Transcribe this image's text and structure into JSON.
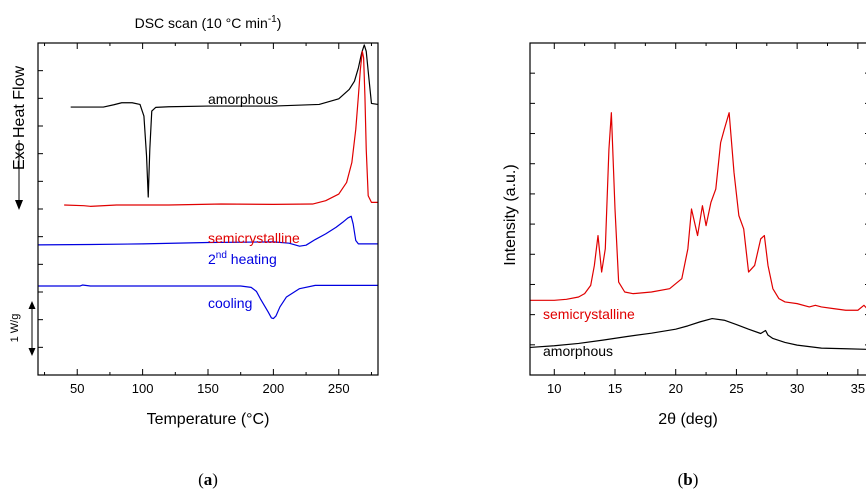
{
  "chart_data": [
    {
      "type": "line",
      "title": "DSC scan (10 °C min",
      "title_superscript": "-1",
      "title_suffix": ")",
      "xlabel": "Temperature (°C)",
      "ylabel": "Exo Heat Flow",
      "ylabel_arrow": "down",
      "scale_bar_label": "1 W/g",
      "xlim": [
        20,
        280
      ],
      "ylim": [
        0,
        10
      ],
      "xticks": [
        50,
        100,
        150,
        200,
        250
      ],
      "y_ticklabels_shown": false,
      "panel_label_bold": "a",
      "panel_label_open": "(",
      "panel_label_close": ")",
      "series": [
        {
          "name": "amorphous",
          "color": "#000000",
          "x": [
            45,
            70,
            78,
            84,
            92,
            98,
            101,
            103,
            104.3,
            105.5,
            107,
            110,
            120,
            150,
            200,
            235,
            250,
            258,
            262,
            265,
            267.5,
            269.5,
            271,
            273,
            275,
            280
          ],
          "y": [
            8.07,
            8.07,
            8.14,
            8.2,
            8.2,
            8.15,
            7.8,
            6.6,
            5.36,
            6.8,
            7.95,
            8.06,
            8.08,
            8.1,
            8.1,
            8.15,
            8.32,
            8.6,
            8.85,
            9.25,
            9.7,
            9.94,
            9.75,
            8.95,
            8.18,
            8.15
          ]
        },
        {
          "name": "semicrystalline",
          "color": "#e00000",
          "x": [
            40,
            55,
            60,
            80,
            120,
            160,
            200,
            230,
            240,
            250,
            256,
            260,
            263,
            265,
            266.5,
            268,
            269,
            270,
            271,
            272.5,
            275,
            280
          ],
          "y": [
            5.12,
            5.1,
            5.08,
            5.12,
            5.12,
            5.15,
            5.14,
            5.15,
            5.25,
            5.45,
            5.8,
            6.4,
            7.4,
            8.4,
            9.2,
            9.75,
            9.55,
            8.4,
            6.8,
            5.4,
            5.2,
            5.2
          ]
        },
        {
          "name": "2nd heating",
          "name_main": "2",
          "name_sup": "nd",
          "name_rest": " heating",
          "color": "#0000e0",
          "x": [
            20,
            60,
            100,
            150,
            200,
            212,
            220,
            225,
            232,
            240,
            248,
            253,
            257,
            259.5,
            261,
            263,
            265,
            270,
            280
          ],
          "y": [
            3.92,
            3.93,
            3.95,
            3.99,
            4.01,
            3.97,
            3.88,
            3.91,
            4.08,
            4.25,
            4.45,
            4.6,
            4.73,
            4.78,
            4.55,
            4.05,
            3.95,
            3.95,
            3.95
          ]
        },
        {
          "name": "cooling",
          "color": "#0000e0",
          "x": [
            20,
            52,
            54,
            60,
            100,
            150,
            175,
            183,
            187,
            190,
            193,
            196,
            198.5,
            200,
            202,
            205,
            210,
            220,
            232,
            245,
            260,
            280
          ],
          "y": [
            2.68,
            2.68,
            2.71,
            2.68,
            2.68,
            2.68,
            2.68,
            2.64,
            2.52,
            2.3,
            2.1,
            1.9,
            1.72,
            1.7,
            1.78,
            2.05,
            2.35,
            2.6,
            2.7,
            2.7,
            2.7,
            2.7
          ]
        }
      ]
    },
    {
      "type": "line",
      "title": "",
      "xlabel": "2θ (deg)",
      "ylabel": "Intensity (a.u.)",
      "xlim": [
        8,
        36
      ],
      "ylim": [
        0,
        100
      ],
      "xticks": [
        10,
        15,
        20,
        25,
        30,
        35
      ],
      "y_ticklabels_shown": false,
      "panel_label_bold": "b",
      "panel_label_open": "(",
      "panel_label_close": ")",
      "series": [
        {
          "name": "semicrystalline",
          "color": "#e00000",
          "x": [
            8,
            10,
            11,
            12,
            12.5,
            13,
            13.3,
            13.6,
            13.9,
            14.2,
            14.5,
            14.7,
            15,
            15.3,
            15.8,
            16.5,
            18,
            19.5,
            20.5,
            21,
            21.3,
            21.8,
            22.2,
            22.5,
            22.9,
            23.3,
            23.7,
            24,
            24.4,
            24.8,
            25.2,
            25.6,
            26,
            26.5,
            27,
            27.3,
            27.6,
            28,
            28.5,
            29,
            30,
            31,
            31.5,
            32,
            33,
            34,
            35,
            35.5,
            36
          ],
          "y": [
            22.5,
            22.5,
            22.8,
            23.5,
            24.5,
            27,
            33,
            42,
            31,
            38,
            68,
            79,
            50,
            28,
            25,
            24.5,
            25,
            26,
            29,
            38,
            50,
            42,
            51,
            45,
            52,
            56,
            70,
            74,
            79,
            61,
            48,
            44,
            31,
            33,
            41,
            42,
            33,
            26,
            23,
            22,
            21.5,
            20.5,
            21,
            20.5,
            20,
            19.5,
            19.5,
            21,
            19
          ]
        },
        {
          "name": "amorphous",
          "color": "#000000",
          "x": [
            8,
            10,
            12,
            14,
            16,
            18,
            20,
            21,
            22,
            23,
            24,
            25,
            26,
            27,
            27.4,
            27.6,
            28,
            29,
            30,
            32,
            34,
            36
          ],
          "y": [
            8.3,
            8.8,
            9.5,
            10.5,
            11.6,
            12.6,
            13.8,
            14.8,
            16,
            17,
            16.5,
            15.2,
            13.8,
            12.5,
            13.4,
            12,
            11,
            9.8,
            9,
            8.1,
            7.9,
            7.7
          ]
        }
      ]
    }
  ]
}
